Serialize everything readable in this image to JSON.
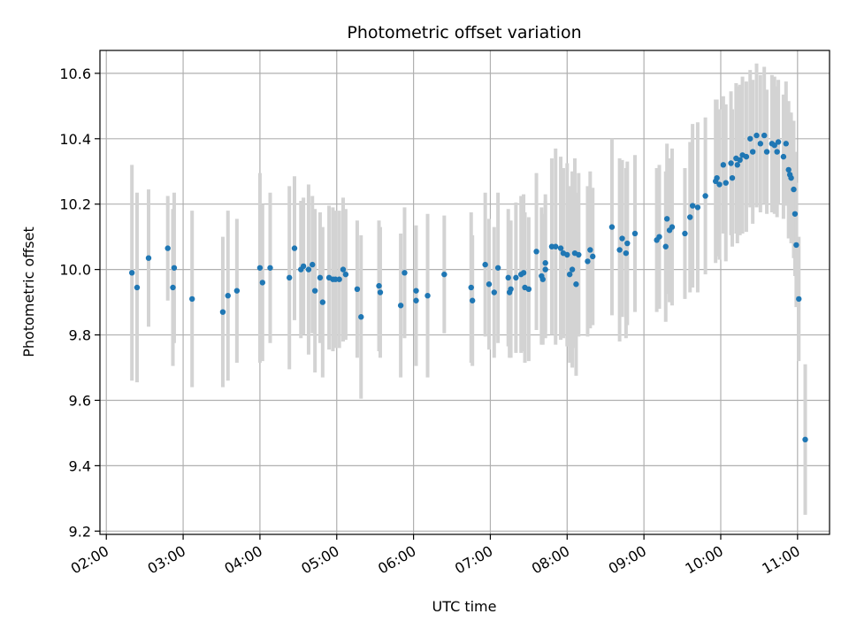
{
  "chart_data": {
    "type": "scatter",
    "title": "Photometric offset variation",
    "xlabel": "UTC time",
    "ylabel": "Photometric offset",
    "xlim": [
      "01:55",
      "11:25"
    ],
    "ylim": [
      9.19,
      10.67
    ],
    "x_ticks": [
      "02:00",
      "03:00",
      "04:00",
      "05:00",
      "06:00",
      "07:00",
      "08:00",
      "09:00",
      "10:00",
      "11:00"
    ],
    "y_ticks": [
      "9.2",
      "9.4",
      "9.6",
      "9.8",
      "10.0",
      "10.2",
      "10.4",
      "10.6"
    ],
    "grid": true,
    "colors": {
      "points": "#1f77b4",
      "error_bars": "#d3d3d3",
      "grid": "#b0b0b0"
    },
    "series": [
      {
        "error_bars": true,
        "points": [
          [
            "02:20",
            9.99,
            0.33
          ],
          [
            "02:24",
            9.945,
            0.29
          ],
          [
            "02:33",
            10.035,
            0.21
          ],
          [
            "02:48",
            10.065,
            0.16
          ],
          [
            "02:52",
            9.945,
            0.24
          ],
          [
            "02:53",
            10.005,
            0.23
          ],
          [
            "03:07",
            9.91,
            0.27
          ],
          [
            "03:31",
            9.87,
            0.23
          ],
          [
            "03:35",
            9.92,
            0.26
          ],
          [
            "03:42",
            9.935,
            0.22
          ],
          [
            "04:00",
            10.005,
            0.29
          ],
          [
            "04:02",
            9.96,
            0.24
          ],
          [
            "04:08",
            10.005,
            0.23
          ],
          [
            "04:23",
            9.975,
            0.28
          ],
          [
            "04:27",
            10.065,
            0.22
          ],
          [
            "04:32",
            10.0,
            0.21
          ],
          [
            "04:34",
            10.01,
            0.21
          ],
          [
            "04:38",
            10.0,
            0.26
          ],
          [
            "04:41",
            10.015,
            0.21
          ],
          [
            "04:43",
            9.935,
            0.25
          ],
          [
            "04:47",
            9.975,
            0.2
          ],
          [
            "04:49",
            9.9,
            0.23
          ],
          [
            "04:54",
            9.975,
            0.22
          ],
          [
            "04:57",
            9.97,
            0.22
          ],
          [
            "04:59",
            9.97,
            0.21
          ],
          [
            "05:02",
            9.97,
            0.21
          ],
          [
            "05:05",
            10.0,
            0.22
          ],
          [
            "05:07",
            9.985,
            0.2
          ],
          [
            "05:16",
            9.94,
            0.21
          ],
          [
            "05:19",
            9.855,
            0.25
          ],
          [
            "05:33",
            9.95,
            0.2
          ],
          [
            "05:34",
            9.93,
            0.2
          ],
          [
            "05:50",
            9.89,
            0.22
          ],
          [
            "05:53",
            9.99,
            0.2
          ],
          [
            "06:02",
            9.935,
            0.2
          ],
          [
            "06:02",
            9.905,
            0.2
          ],
          [
            "06:11",
            9.92,
            0.25
          ],
          [
            "06:24",
            9.985,
            0.18
          ],
          [
            "06:45",
            9.945,
            0.23
          ],
          [
            "06:46",
            9.905,
            0.2
          ],
          [
            "06:56",
            10.015,
            0.22
          ],
          [
            "06:59",
            9.955,
            0.2
          ],
          [
            "07:03",
            9.93,
            0.2
          ],
          [
            "07:06",
            10.005,
            0.23
          ],
          [
            "07:14",
            9.975,
            0.21
          ],
          [
            "07:15",
            9.93,
            0.2
          ],
          [
            "07:16",
            9.94,
            0.21
          ],
          [
            "07:20",
            9.975,
            0.23
          ],
          [
            "07:24",
            9.985,
            0.24
          ],
          [
            "07:26",
            9.99,
            0.24
          ],
          [
            "07:27",
            9.945,
            0.23
          ],
          [
            "07:30",
            9.94,
            0.22
          ],
          [
            "07:36",
            10.055,
            0.24
          ],
          [
            "07:40",
            9.98,
            0.21
          ],
          [
            "07:41",
            9.97,
            0.2
          ],
          [
            "07:43",
            10.0,
            0.21
          ],
          [
            "07:43",
            10.02,
            0.21
          ],
          [
            "07:48",
            10.07,
            0.27
          ],
          [
            "07:51",
            10.07,
            0.3
          ],
          [
            "07:55",
            10.065,
            0.28
          ],
          [
            "07:57",
            10.05,
            0.26
          ],
          [
            "08:00",
            10.045,
            0.28
          ],
          [
            "08:02",
            9.985,
            0.27
          ],
          [
            "08:04",
            10.0,
            0.3
          ],
          [
            "08:06",
            10.05,
            0.29
          ],
          [
            "08:07",
            9.955,
            0.28
          ],
          [
            "08:09",
            10.045,
            0.25
          ],
          [
            "08:16",
            10.025,
            0.23
          ],
          [
            "08:18",
            10.06,
            0.24
          ],
          [
            "08:20",
            10.04,
            0.21
          ],
          [
            "08:35",
            10.13,
            0.27
          ],
          [
            "08:41",
            10.06,
            0.28
          ],
          [
            "08:43",
            10.095,
            0.24
          ],
          [
            "08:46",
            10.05,
            0.26
          ],
          [
            "08:47",
            10.08,
            0.25
          ],
          [
            "08:53",
            10.11,
            0.24
          ],
          [
            "09:10",
            10.09,
            0.22
          ],
          [
            "09:12",
            10.1,
            0.22
          ],
          [
            "09:17",
            10.07,
            0.23
          ],
          [
            "09:18",
            10.155,
            0.23
          ],
          [
            "09:20",
            10.12,
            0.22
          ],
          [
            "09:22",
            10.13,
            0.24
          ],
          [
            "09:32",
            10.11,
            0.2
          ],
          [
            "09:36",
            10.16,
            0.23
          ],
          [
            "09:38",
            10.195,
            0.25
          ],
          [
            "09:42",
            10.19,
            0.26
          ],
          [
            "09:48",
            10.225,
            0.24
          ],
          [
            "09:56",
            10.27,
            0.25
          ],
          [
            "09:57",
            10.28,
            0.24
          ],
          [
            "09:59",
            10.26,
            0.23
          ],
          [
            "10:02",
            10.32,
            0.21
          ],
          [
            "10:04",
            10.265,
            0.24
          ],
          [
            "10:08",
            10.325,
            0.22
          ],
          [
            "10:09",
            10.28,
            0.21
          ],
          [
            "10:12",
            10.34,
            0.23
          ],
          [
            "10:13",
            10.32,
            0.24
          ],
          [
            "10:15",
            10.335,
            0.23
          ],
          [
            "10:17",
            10.35,
            0.24
          ],
          [
            "10:20",
            10.345,
            0.23
          ],
          [
            "10:23",
            10.4,
            0.21
          ],
          [
            "10:25",
            10.36,
            0.22
          ],
          [
            "10:28",
            10.41,
            0.22
          ],
          [
            "10:31",
            10.385,
            0.21
          ],
          [
            "10:34",
            10.41,
            0.21
          ],
          [
            "10:36",
            10.36,
            0.19
          ],
          [
            "10:40",
            10.385,
            0.21
          ],
          [
            "10:42",
            10.38,
            0.21
          ],
          [
            "10:44",
            10.36,
            0.2
          ],
          [
            "10:45",
            10.39,
            0.19
          ],
          [
            "10:49",
            10.345,
            0.19
          ],
          [
            "10:51",
            10.385,
            0.19
          ],
          [
            "10:53",
            10.305,
            0.21
          ],
          [
            "10:54",
            10.29,
            0.19
          ],
          [
            "10:55",
            10.28,
            0.2
          ],
          [
            "10:57",
            10.245,
            0.21
          ],
          [
            "10:58",
            10.17,
            0.19
          ],
          [
            "10:59",
            10.075,
            0.19
          ],
          [
            "11:01",
            9.91,
            0.19
          ],
          [
            "11:06",
            9.48,
            0.23
          ]
        ]
      }
    ]
  }
}
